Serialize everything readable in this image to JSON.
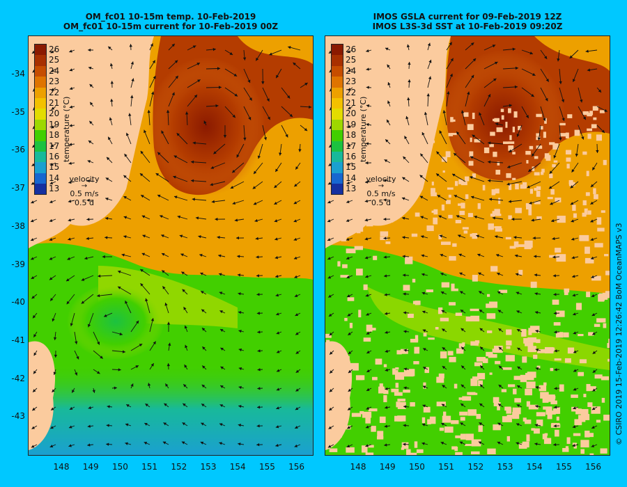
{
  "panels": [
    {
      "title_line1": "OM_fc01 10-15m temp. 10-Feb-2019",
      "title_line2": "OM_fc01 10-15m current for 10-Feb-2019 00Z"
    },
    {
      "title_line1": "IMOS GSLA current for 09-Feb-2019 12Z",
      "title_line2": "IMOS L3S-3d SST at 10-Feb-2019 09:20Z"
    }
  ],
  "colorbar": {
    "label": "temperature (°C)",
    "ticks": [
      "26",
      "25",
      "24",
      "23",
      "22",
      "21",
      "20",
      "19",
      "18",
      "17",
      "16",
      "15",
      "14",
      "13"
    ],
    "colors": [
      "#8b1a00",
      "#a83000",
      "#c64d00",
      "#df7400",
      "#eda000",
      "#f3c100",
      "#e3dc00",
      "#9ed800",
      "#42cf00",
      "#1cc240",
      "#18b99a",
      "#1aa0d0",
      "#1767d0",
      "#1530a0"
    ]
  },
  "velocity_key": {
    "title": "velocity",
    "speed": "0.5 m/s",
    "time": "0.5 d"
  },
  "yticks": [
    "-34",
    "-35",
    "-36",
    "-37",
    "-38",
    "-39",
    "-40",
    "-41",
    "-42",
    "-43"
  ],
  "xticks": [
    "148",
    "149",
    "150",
    "151",
    "152",
    "153",
    "154",
    "155",
    "156"
  ],
  "credit": "© CSIRO 2019  15-Feb-2019 12:26:42 BoM OceanMAPS v3",
  "land_color": "#fbcb9e",
  "background_color": "#00c8ff"
}
